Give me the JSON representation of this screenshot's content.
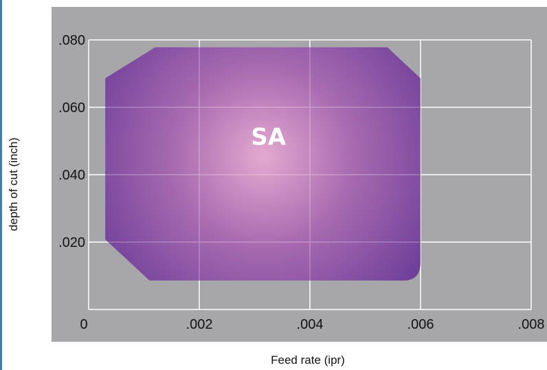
{
  "chart_data": {
    "type": "area",
    "xlabel": "Feed rate (ipr)",
    "ylabel": "depth of cut (inch)",
    "xlim": [
      0,
      0.008
    ],
    "ylim": [
      0,
      0.08
    ],
    "x_ticks": [
      "0",
      ".002",
      ".004",
      ".006",
      ".008"
    ],
    "x_tick_values": [
      0,
      0.002,
      0.004,
      0.006,
      0.008
    ],
    "y_ticks": [
      ".020",
      ".040",
      ".060",
      ".080"
    ],
    "y_tick_values": [
      0.02,
      0.04,
      0.06,
      0.08
    ],
    "grid": true,
    "regions": [
      {
        "name": "SA",
        "label": "SA",
        "boundary": [
          [
            0.0012,
            0.0778
          ],
          [
            0.0054,
            0.0778
          ],
          [
            0.006,
            0.0686
          ],
          [
            0.006,
            0.0142
          ],
          [
            0.0057,
            0.0086
          ],
          [
            0.0011,
            0.0086
          ],
          [
            0.0003,
            0.0208
          ],
          [
            0.0003,
            0.0686
          ]
        ],
        "label_at": [
          0.00325,
          0.0508
        ]
      }
    ],
    "colors": {
      "plot_background": "#a7a7a9",
      "gridline": "#ffffff",
      "region_center": "#e4a9d0",
      "region_edge": "#6a3c98"
    }
  }
}
